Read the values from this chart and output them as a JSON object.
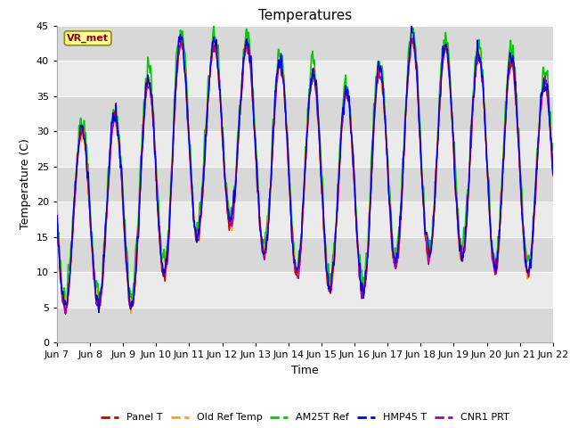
{
  "title": "Temperatures",
  "ylabel": "Temperature (C)",
  "xlabel": "Time",
  "annotation_text": "VR_met",
  "ylim": [
    0,
    45
  ],
  "background_color": "#ffffff",
  "plot_bg_stripe_light": "#ebebeb",
  "plot_bg_stripe_dark": "#d8d8d8",
  "grid_color": "#ffffff",
  "series": {
    "Panel T": {
      "color": "#cc0000",
      "lw": 1.0
    },
    "Old Ref Temp": {
      "color": "#ffa500",
      "lw": 1.0
    },
    "AM25T Ref": {
      "color": "#00cc00",
      "lw": 1.2
    },
    "HMP45 T": {
      "color": "#0000ee",
      "lw": 1.0
    },
    "CNR1 PRT": {
      "color": "#aa00aa",
      "lw": 1.0
    }
  },
  "xtick_labels": [
    "Jun 7",
    "Jun 8",
    "Jun 9",
    "Jun 10",
    "Jun 11",
    "Jun 12",
    "Jun 13",
    "Jun 14",
    "Jun 15",
    "Jun 16",
    "Jun 17",
    "Jun 18",
    "Jun 19",
    "Jun 20",
    "Jun 21",
    "Jun 22"
  ],
  "num_days": 15,
  "points_per_day": 144,
  "title_fontsize": 11,
  "label_fontsize": 9,
  "tick_fontsize": 8,
  "base_min": [
    5,
    5,
    5,
    11,
    16,
    17,
    11,
    9,
    7,
    7,
    12,
    12,
    12,
    10,
    10
  ],
  "base_max": [
    30,
    31,
    35,
    43,
    42,
    43,
    40,
    39,
    35,
    37,
    43,
    42,
    41,
    41,
    37
  ]
}
